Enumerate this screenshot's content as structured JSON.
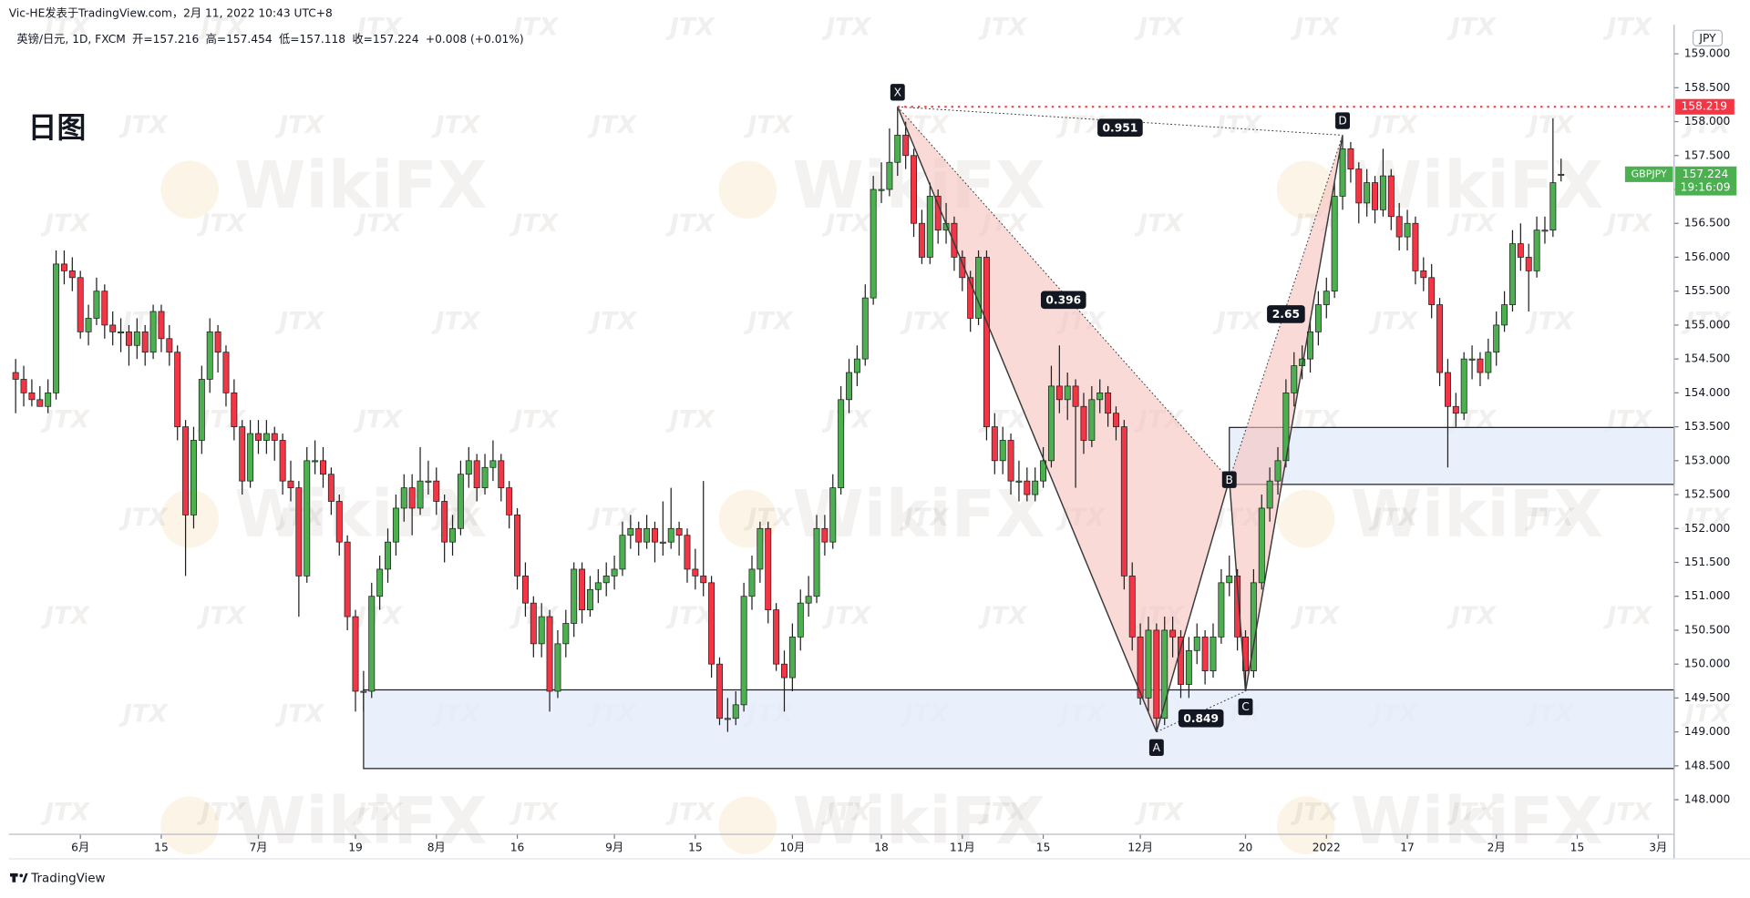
{
  "header": {
    "publisher": "Vic-HE发表于TradingView.com，2月 11, 2022 10:43 UTC+8",
    "footer": "TradingView"
  },
  "chart_data": {
    "type": "candlestick",
    "title": "日图",
    "symbol": "英镑/日元, 1D, FXCM",
    "legend_texts": [
      "开=157.216",
      "高=157.454",
      "低=157.118",
      "收=157.224",
      "+0.008 (+0.01%)"
    ],
    "ticker": "GBPJPY",
    "countdown": "19:16:09",
    "currency": "JPY",
    "colors": {
      "up": "#4caf50",
      "down": "#f23645",
      "outline": "#1e1e1e",
      "price_line": "#f23645",
      "zone": "#e3ecfb",
      "pattern": "#f6c2bc"
    },
    "grid": false,
    "candles": [
      [
        154.3,
        154.5,
        153.7,
        154.2
      ],
      [
        154.2,
        154.4,
        153.8,
        154.0
      ],
      [
        154.0,
        154.2,
        153.8,
        153.9
      ],
      [
        153.9,
        154.1,
        153.8,
        153.8
      ],
      [
        153.8,
        154.2,
        153.7,
        154.0
      ],
      [
        154.0,
        156.1,
        153.9,
        155.9
      ],
      [
        155.9,
        156.1,
        155.6,
        155.8
      ],
      [
        155.8,
        156.0,
        155.5,
        155.7
      ],
      [
        155.7,
        155.8,
        154.8,
        154.9
      ],
      [
        154.9,
        155.3,
        154.7,
        155.1
      ],
      [
        155.1,
        155.7,
        155.0,
        155.5
      ],
      [
        155.5,
        155.6,
        154.8,
        155.0
      ],
      [
        155.0,
        155.2,
        154.7,
        154.9
      ],
      [
        154.9,
        155.1,
        154.6,
        154.9
      ],
      [
        154.9,
        155.0,
        154.4,
        154.7
      ],
      [
        154.7,
        155.1,
        154.5,
        154.9
      ],
      [
        154.9,
        155.0,
        154.4,
        154.6
      ],
      [
        154.6,
        155.3,
        154.5,
        155.2
      ],
      [
        155.2,
        155.3,
        154.6,
        154.8
      ],
      [
        154.8,
        155.0,
        154.4,
        154.6
      ],
      [
        154.6,
        154.7,
        153.3,
        153.5
      ],
      [
        153.5,
        153.6,
        151.3,
        152.2
      ],
      [
        152.2,
        153.5,
        152.0,
        153.3
      ],
      [
        153.3,
        154.4,
        153.1,
        154.2
      ],
      [
        154.2,
        155.1,
        154.0,
        154.9
      ],
      [
        154.9,
        155.0,
        154.3,
        154.6
      ],
      [
        154.6,
        154.7,
        153.8,
        154.0
      ],
      [
        154.0,
        154.2,
        153.3,
        153.5
      ],
      [
        153.5,
        153.6,
        152.5,
        152.7
      ],
      [
        152.7,
        153.6,
        152.6,
        153.4
      ],
      [
        153.4,
        153.6,
        153.1,
        153.3
      ],
      [
        153.3,
        153.6,
        153.1,
        153.4
      ],
      [
        153.4,
        153.5,
        153.0,
        153.3
      ],
      [
        153.3,
        153.4,
        152.5,
        152.7
      ],
      [
        152.7,
        153.0,
        152.4,
        152.6
      ],
      [
        152.6,
        152.7,
        150.7,
        151.3
      ],
      [
        151.3,
        153.2,
        151.2,
        153.0
      ],
      [
        153.0,
        153.3,
        152.8,
        153.0
      ],
      [
        153.0,
        153.2,
        152.6,
        152.8
      ],
      [
        152.8,
        152.9,
        152.2,
        152.4
      ],
      [
        152.4,
        152.5,
        151.6,
        151.8
      ],
      [
        151.8,
        151.9,
        150.5,
        150.7
      ],
      [
        150.7,
        150.8,
        149.3,
        149.6
      ],
      [
        149.6,
        149.9,
        149.3,
        149.6
      ],
      [
        149.6,
        151.2,
        149.5,
        151.0
      ],
      [
        151.0,
        151.6,
        150.8,
        151.4
      ],
      [
        151.4,
        152.0,
        151.2,
        151.8
      ],
      [
        151.8,
        152.5,
        151.6,
        152.3
      ],
      [
        152.3,
        152.8,
        152.1,
        152.6
      ],
      [
        152.6,
        152.8,
        151.9,
        152.3
      ],
      [
        152.3,
        153.2,
        152.2,
        152.7
      ],
      [
        152.7,
        153.0,
        152.5,
        152.7
      ],
      [
        152.7,
        152.9,
        152.2,
        152.4
      ],
      [
        152.4,
        152.5,
        151.5,
        151.8
      ],
      [
        151.8,
        152.2,
        151.6,
        152.0
      ],
      [
        152.0,
        153.0,
        151.9,
        152.8
      ],
      [
        152.8,
        153.2,
        152.6,
        153.0
      ],
      [
        153.0,
        153.1,
        152.4,
        152.6
      ],
      [
        152.6,
        153.1,
        152.5,
        152.9
      ],
      [
        152.9,
        153.3,
        152.7,
        153.0
      ],
      [
        153.0,
        153.1,
        152.4,
        152.6
      ],
      [
        152.6,
        152.7,
        152.0,
        152.2
      ],
      [
        152.2,
        152.3,
        151.1,
        151.3
      ],
      [
        151.3,
        151.5,
        150.7,
        150.9
      ],
      [
        150.9,
        151.0,
        150.1,
        150.3
      ],
      [
        150.3,
        150.9,
        150.1,
        150.7
      ],
      [
        150.7,
        150.8,
        149.3,
        149.6
      ],
      [
        149.6,
        150.5,
        149.5,
        150.3
      ],
      [
        150.3,
        150.8,
        150.1,
        150.6
      ],
      [
        150.6,
        151.5,
        150.4,
        151.4
      ],
      [
        151.4,
        151.5,
        150.6,
        150.8
      ],
      [
        150.8,
        151.3,
        150.7,
        151.1
      ],
      [
        151.1,
        151.4,
        150.9,
        151.2
      ],
      [
        151.2,
        151.5,
        151.0,
        151.3
      ],
      [
        151.3,
        151.6,
        151.1,
        151.4
      ],
      [
        151.4,
        152.1,
        151.3,
        151.9
      ],
      [
        151.9,
        152.2,
        151.7,
        152.0
      ],
      [
        152.0,
        152.1,
        151.6,
        151.8
      ],
      [
        151.8,
        152.2,
        151.7,
        152.0
      ],
      [
        152.0,
        152.1,
        151.5,
        151.8
      ],
      [
        151.8,
        152.4,
        151.6,
        151.8
      ],
      [
        151.8,
        152.6,
        151.7,
        152.0
      ],
      [
        152.0,
        152.1,
        151.6,
        151.9
      ],
      [
        151.9,
        152.0,
        151.2,
        151.4
      ],
      [
        151.4,
        151.7,
        151.1,
        151.3
      ],
      [
        151.3,
        152.7,
        151.0,
        151.2
      ],
      [
        151.2,
        151.3,
        149.8,
        150.0
      ],
      [
        150.0,
        150.1,
        149.1,
        149.2
      ],
      [
        149.2,
        149.5,
        149.0,
        149.2
      ],
      [
        149.2,
        149.6,
        149.1,
        149.4
      ],
      [
        149.4,
        151.2,
        149.3,
        151.0
      ],
      [
        151.0,
        151.6,
        150.8,
        151.4
      ],
      [
        151.4,
        152.1,
        151.2,
        152.0
      ],
      [
        152.0,
        152.1,
        150.6,
        150.8
      ],
      [
        150.8,
        150.9,
        149.9,
        150.0
      ],
      [
        150.0,
        150.2,
        149.3,
        149.8
      ],
      [
        149.8,
        150.6,
        149.6,
        150.4
      ],
      [
        150.4,
        151.1,
        150.2,
        150.9
      ],
      [
        150.9,
        151.3,
        150.7,
        151.0
      ],
      [
        151.0,
        152.2,
        150.9,
        152.0
      ],
      [
        152.0,
        152.2,
        151.6,
        151.8
      ],
      [
        151.8,
        152.8,
        151.7,
        152.6
      ],
      [
        152.6,
        154.1,
        152.5,
        153.9
      ],
      [
        153.9,
        154.5,
        153.7,
        154.3
      ],
      [
        154.3,
        154.7,
        154.1,
        154.5
      ],
      [
        154.5,
        155.6,
        154.4,
        155.4
      ],
      [
        155.4,
        157.2,
        155.3,
        157.0
      ],
      [
        157.0,
        157.4,
        156.8,
        157.0
      ],
      [
        157.0,
        157.9,
        156.9,
        157.4
      ],
      [
        157.4,
        158.219,
        157.2,
        157.8
      ],
      [
        157.8,
        158.0,
        157.3,
        157.5
      ],
      [
        157.5,
        157.6,
        156.3,
        156.5
      ],
      [
        156.5,
        156.7,
        155.9,
        156.0
      ],
      [
        156.0,
        157.1,
        155.9,
        156.9
      ],
      [
        156.9,
        157.0,
        156.2,
        156.4
      ],
      [
        156.4,
        156.8,
        156.2,
        156.5
      ],
      [
        156.5,
        156.6,
        155.8,
        156.0
      ],
      [
        156.0,
        156.1,
        155.5,
        155.7
      ],
      [
        155.7,
        155.8,
        154.9,
        155.1
      ],
      [
        155.1,
        156.1,
        155.0,
        156.0
      ],
      [
        156.0,
        156.1,
        153.3,
        153.5
      ],
      [
        153.5,
        153.7,
        152.8,
        153.0
      ],
      [
        153.0,
        153.5,
        152.8,
        153.3
      ],
      [
        153.3,
        153.4,
        152.5,
        152.7
      ],
      [
        152.7,
        153.0,
        152.4,
        152.7
      ],
      [
        152.7,
        152.9,
        152.4,
        152.5
      ],
      [
        152.5,
        152.9,
        152.4,
        152.7
      ],
      [
        152.7,
        153.2,
        152.6,
        153.0
      ],
      [
        153.0,
        154.4,
        152.9,
        154.1
      ],
      [
        154.1,
        154.7,
        153.7,
        153.9
      ],
      [
        153.9,
        154.3,
        153.6,
        154.1
      ],
      [
        154.1,
        154.2,
        152.6,
        153.8
      ],
      [
        153.8,
        154.0,
        153.1,
        153.3
      ],
      [
        153.3,
        154.1,
        153.2,
        153.9
      ],
      [
        153.9,
        154.2,
        153.7,
        154.0
      ],
      [
        154.0,
        154.1,
        153.5,
        153.7
      ],
      [
        153.7,
        153.8,
        153.3,
        153.5
      ],
      [
        153.5,
        153.6,
        151.1,
        151.3
      ],
      [
        151.3,
        151.5,
        150.2,
        150.4
      ],
      [
        150.4,
        150.6,
        149.4,
        149.5
      ],
      [
        149.5,
        150.7,
        149.3,
        150.5
      ],
      [
        150.5,
        150.6,
        149.0,
        149.2
      ],
      [
        149.2,
        150.7,
        149.1,
        150.5
      ],
      [
        150.5,
        150.7,
        150.1,
        150.4
      ],
      [
        150.4,
        150.5,
        149.5,
        149.7
      ],
      [
        149.7,
        150.4,
        149.5,
        150.2
      ],
      [
        150.2,
        150.6,
        150.0,
        150.4
      ],
      [
        150.4,
        150.5,
        149.7,
        149.9
      ],
      [
        149.9,
        150.6,
        149.8,
        150.4
      ],
      [
        150.4,
        151.4,
        150.3,
        151.2
      ],
      [
        151.2,
        151.6,
        151.0,
        151.3
      ],
      [
        151.3,
        151.4,
        150.2,
        150.4
      ],
      [
        150.4,
        150.5,
        149.6,
        149.9
      ],
      [
        149.9,
        151.4,
        149.8,
        151.2
      ],
      [
        151.2,
        152.5,
        151.1,
        152.3
      ],
      [
        152.3,
        152.9,
        152.1,
        152.7
      ],
      [
        152.7,
        153.2,
        152.5,
        153.0
      ],
      [
        153.0,
        154.2,
        152.9,
        154.0
      ],
      [
        154.0,
        154.6,
        153.8,
        154.4
      ],
      [
        154.4,
        154.7,
        154.2,
        154.5
      ],
      [
        154.5,
        155.1,
        154.3,
        154.9
      ],
      [
        154.9,
        155.5,
        154.7,
        155.3
      ],
      [
        155.3,
        155.7,
        155.1,
        155.5
      ],
      [
        155.5,
        157.1,
        155.4,
        156.9
      ],
      [
        156.9,
        157.8,
        156.7,
        157.6
      ],
      [
        157.6,
        157.7,
        157.1,
        157.3
      ],
      [
        157.3,
        157.4,
        156.5,
        156.8
      ],
      [
        156.8,
        157.3,
        156.6,
        157.1
      ],
      [
        157.1,
        157.2,
        156.5,
        156.7
      ],
      [
        156.7,
        157.6,
        156.6,
        157.2
      ],
      [
        157.2,
        157.3,
        156.4,
        156.6
      ],
      [
        156.6,
        156.8,
        156.1,
        156.3
      ],
      [
        156.3,
        156.7,
        156.1,
        156.5
      ],
      [
        156.5,
        156.6,
        155.6,
        155.8
      ],
      [
        155.8,
        156.0,
        155.5,
        155.7
      ],
      [
        155.7,
        155.9,
        155.1,
        155.3
      ],
      [
        155.3,
        155.4,
        154.1,
        154.3
      ],
      [
        154.3,
        154.5,
        152.9,
        153.8
      ],
      [
        153.8,
        154.0,
        153.5,
        153.7
      ],
      [
        153.7,
        154.6,
        153.6,
        154.5
      ],
      [
        154.5,
        154.7,
        154.2,
        154.5
      ],
      [
        154.5,
        154.6,
        154.1,
        154.3
      ],
      [
        154.3,
        154.8,
        154.2,
        154.6
      ],
      [
        154.6,
        155.2,
        154.4,
        155.0
      ],
      [
        155.0,
        155.5,
        154.9,
        155.3
      ],
      [
        155.3,
        156.4,
        155.2,
        156.2
      ],
      [
        156.2,
        156.5,
        155.8,
        156.0
      ],
      [
        156.0,
        156.2,
        155.2,
        155.8
      ],
      [
        155.8,
        156.6,
        155.7,
        156.4
      ],
      [
        156.4,
        156.6,
        156.2,
        156.4
      ],
      [
        156.4,
        158.05,
        156.3,
        157.1
      ],
      [
        157.216,
        157.454,
        157.118,
        157.224
      ]
    ],
    "xlim": [
      -0.83,
      204.97
    ],
    "xticks": [
      {
        "value": 8,
        "label": "6月"
      },
      {
        "value": 18,
        "label": "15"
      },
      {
        "value": 30,
        "label": "7月"
      },
      {
        "value": 42,
        "label": "19"
      },
      {
        "value": 52,
        "label": "8月"
      },
      {
        "value": 62,
        "label": "16"
      },
      {
        "value": 74,
        "label": "9月"
      },
      {
        "value": 84,
        "label": "15"
      },
      {
        "value": 96,
        "label": "10月"
      },
      {
        "value": 107,
        "label": "18"
      },
      {
        "value": 117,
        "label": "11月"
      },
      {
        "value": 127,
        "label": "15"
      },
      {
        "value": 139,
        "label": "12月"
      },
      {
        "value": 152,
        "label": "20"
      },
      {
        "value": 162,
        "label": "2022"
      },
      {
        "value": 172,
        "label": "17"
      },
      {
        "value": 183,
        "label": "2月"
      },
      {
        "value": 193,
        "label": "15"
      },
      {
        "value": 203,
        "label": "3月"
      }
    ],
    "ylim": [
      147.49,
      159.43
    ],
    "yticks": [
      {
        "value": 148,
        "label": "148.000"
      },
      {
        "value": 148.5,
        "label": "148.500"
      },
      {
        "value": 149,
        "label": "149.000"
      },
      {
        "value": 149.5,
        "label": "149.500"
      },
      {
        "value": 150,
        "label": "150.000"
      },
      {
        "value": 150.5,
        "label": "150.500"
      },
      {
        "value": 151,
        "label": "151.000"
      },
      {
        "value": 151.5,
        "label": "151.500"
      },
      {
        "value": 152,
        "label": "152.000"
      },
      {
        "value": 152.5,
        "label": "152.500"
      },
      {
        "value": 153,
        "label": "153.000"
      },
      {
        "value": 153.5,
        "label": "153.500"
      },
      {
        "value": 154,
        "label": "154.000"
      },
      {
        "value": 154.5,
        "label": "154.500"
      },
      {
        "value": 155,
        "label": "155.000"
      },
      {
        "value": 155.5,
        "label": "155.500"
      },
      {
        "value": 156,
        "label": "156.000"
      },
      {
        "value": 156.5,
        "label": "156.500"
      },
      {
        "value": 157,
        "label": "157.000"
      },
      {
        "value": 157.5,
        "label": "157.500"
      },
      {
        "value": 158,
        "label": "158.000"
      },
      {
        "value": 158.5,
        "label": "158.500"
      },
      {
        "value": 159,
        "label": "159.000"
      }
    ],
    "price_line": 158.219,
    "zones": [
      {
        "start": 43,
        "top": 149.62,
        "bottom": 148.46
      },
      {
        "start": 150,
        "top": 153.49,
        "bottom": 152.65
      }
    ],
    "pattern": {
      "points": [
        {
          "label": "X",
          "x": 109,
          "y": 158.219
        },
        {
          "label": "A",
          "x": 141,
          "y": 149.0
        },
        {
          "label": "B",
          "x": 150,
          "y": 152.72
        },
        {
          "label": "C",
          "x": 152,
          "y": 149.6
        },
        {
          "label": "D",
          "x": 164,
          "y": 157.8
        }
      ],
      "ratios": [
        0.951,
        0.396,
        0.849,
        2.65
      ]
    },
    "watermarks": [
      "WikiFX",
      "JTX"
    ]
  }
}
